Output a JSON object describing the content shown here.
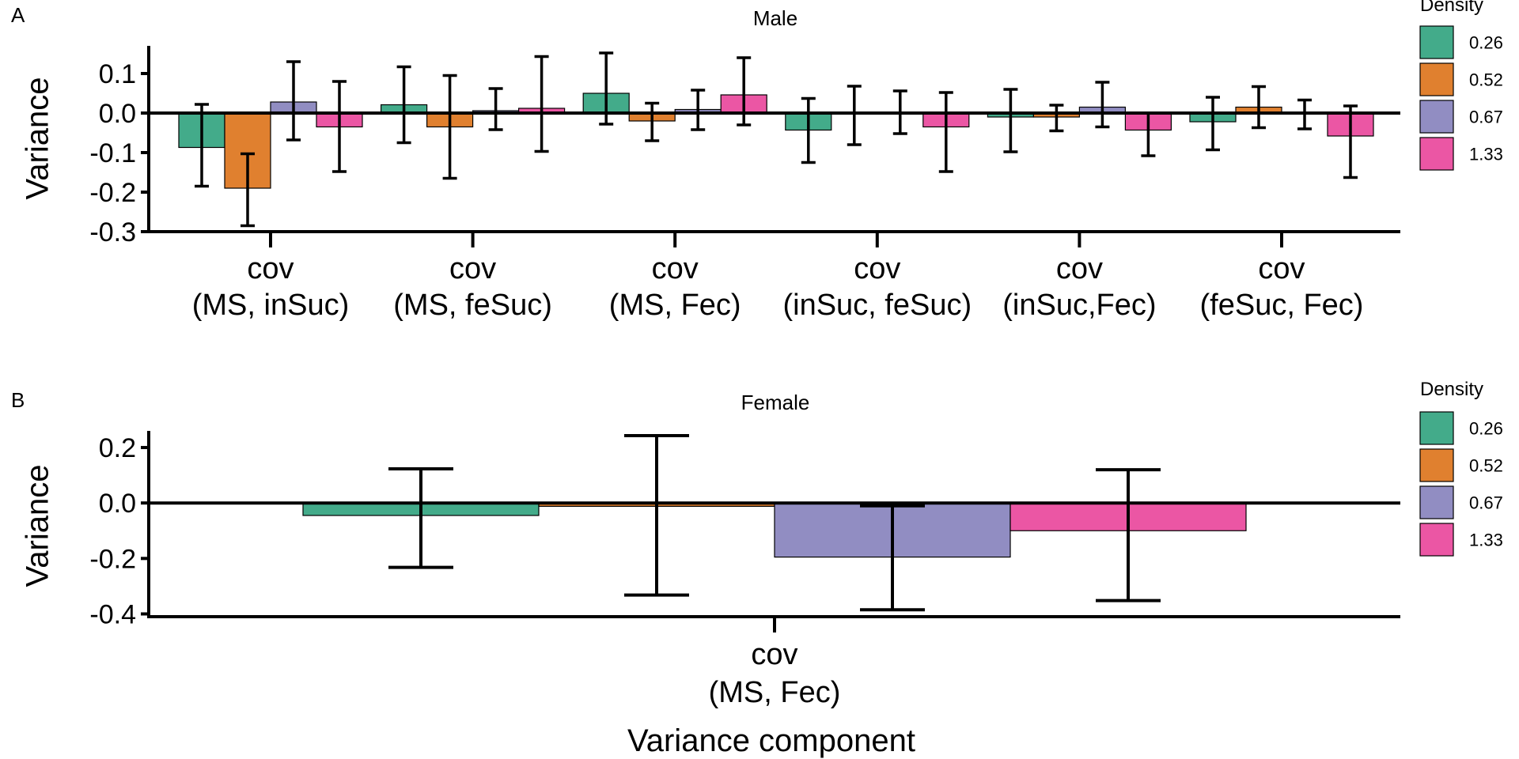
{
  "xlabel": "Variance component",
  "colors": {
    "0.26": "#43AB8A",
    "0.52": "#E0802F",
    "0.67": "#918DC2",
    "1.33": "#EB56A4"
  },
  "chart_data": [
    {
      "type": "bar",
      "panel": "A",
      "title": "Male",
      "ylabel": "Variance",
      "ylim": [
        -0.3,
        0.17
      ],
      "yticks": [
        {
          "value": 0.1,
          "label": "0.1"
        },
        {
          "value": 0.0,
          "label": "0.0"
        },
        {
          "value": -0.1,
          "label": "-0.1"
        },
        {
          "value": -0.2,
          "label": "-0.2"
        },
        {
          "value": -0.3,
          "label": "-0.3"
        }
      ],
      "categories": [
        [
          "cov",
          "(MS, inSuc)"
        ],
        [
          "cov",
          "(MS, feSuc)"
        ],
        [
          "cov",
          "(MS, Fec)"
        ],
        [
          "cov",
          "(inSuc, feSuc)"
        ],
        [
          "cov",
          "(inSuc,Fec)"
        ],
        [
          "cov",
          "(feSuc, Fec)"
        ]
      ],
      "legend": {
        "title": "Density",
        "position": "right",
        "entries": [
          "0.26",
          "0.52",
          "0.67",
          "1.33"
        ]
      },
      "series": [
        {
          "name": "0.26",
          "values": [
            -0.087,
            0.021,
            0.05,
            -0.043,
            -0.01,
            -0.022
          ],
          "lower": [
            -0.185,
            -0.075,
            -0.028,
            -0.125,
            -0.098,
            -0.093
          ],
          "upper": [
            0.022,
            0.117,
            0.152,
            0.037,
            0.06,
            0.04
          ]
        },
        {
          "name": "0.52",
          "values": [
            -0.19,
            -0.035,
            -0.02,
            0.0,
            -0.01,
            0.015
          ],
          "lower": [
            -0.285,
            -0.165,
            -0.07,
            -0.08,
            -0.045,
            -0.037
          ],
          "upper": [
            -0.103,
            0.095,
            0.025,
            0.068,
            0.02,
            0.067
          ]
        },
        {
          "name": "0.67",
          "values": [
            0.028,
            0.006,
            0.009,
            0.0,
            0.015,
            0.0
          ],
          "lower": [
            -0.068,
            -0.042,
            -0.042,
            -0.052,
            -0.035,
            -0.04
          ],
          "upper": [
            0.13,
            0.062,
            0.058,
            0.056,
            0.078,
            0.033
          ]
        },
        {
          "name": "1.33",
          "values": [
            -0.035,
            0.012,
            0.046,
            -0.035,
            -0.043,
            -0.058
          ],
          "lower": [
            -0.148,
            -0.097,
            -0.03,
            -0.148,
            -0.108,
            -0.163
          ],
          "upper": [
            0.08,
            0.143,
            0.14,
            0.052,
            0.0,
            0.018
          ]
        }
      ]
    },
    {
      "type": "bar",
      "panel": "B",
      "title": "Female",
      "ylabel": "Variance",
      "ylim": [
        -0.41,
        0.26
      ],
      "yticks": [
        {
          "value": 0.2,
          "label": "0.2"
        },
        {
          "value": 0.0,
          "label": "0.0"
        },
        {
          "value": -0.2,
          "label": "-0.2"
        },
        {
          "value": -0.4,
          "label": "-0.4"
        }
      ],
      "categories": [
        [
          "cov",
          "(MS, Fec)"
        ]
      ],
      "legend": {
        "title": "Density",
        "position": "right",
        "entries": [
          "0.26",
          "0.52",
          "0.67",
          "1.33"
        ]
      },
      "series": [
        {
          "name": "0.26",
          "values": [
            -0.045
          ],
          "lower": [
            -0.232
          ],
          "upper": [
            0.123
          ]
        },
        {
          "name": "0.52",
          "values": [
            -0.012
          ],
          "lower": [
            -0.332
          ],
          "upper": [
            0.243
          ]
        },
        {
          "name": "0.67",
          "values": [
            -0.195
          ],
          "lower": [
            -0.385
          ],
          "upper": [
            -0.01
          ]
        },
        {
          "name": "1.33",
          "values": [
            -0.1
          ],
          "lower": [
            -0.352
          ],
          "upper": [
            0.12
          ]
        }
      ]
    }
  ]
}
